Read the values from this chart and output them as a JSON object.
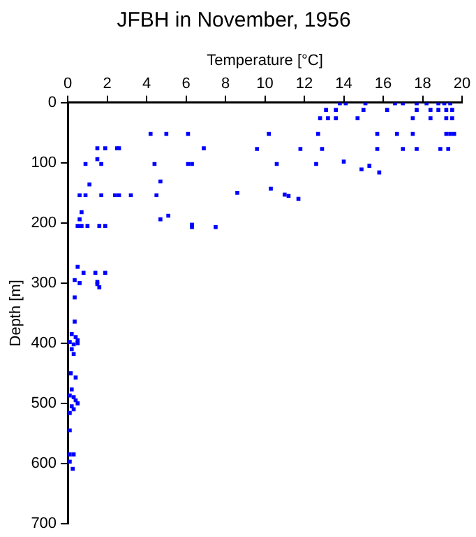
{
  "chart_data": {
    "type": "scatter",
    "title": "JFBH in November, 1956",
    "xlabel": "Temperature [°C]",
    "ylabel": "Depth [m]",
    "xlim": [
      0,
      20
    ],
    "xticks": [
      0,
      2,
      4,
      6,
      8,
      10,
      12,
      14,
      16,
      18,
      20
    ],
    "ylim": [
      700,
      0
    ],
    "yticks": [
      0,
      100,
      200,
      300,
      400,
      500,
      600,
      700
    ],
    "grid": false,
    "legend": false,
    "marker": "square",
    "series": [
      {
        "color": "#0000ff",
        "x": [
          13.8,
          14.1,
          15.1,
          16.6,
          17.0,
          17.7,
          18.2,
          18.8,
          19.1,
          19.4,
          13.1,
          13.6,
          15.0,
          16.2,
          17.7,
          18.4,
          18.8,
          19.2,
          19.5,
          12.8,
          13.2,
          13.6,
          14.7,
          17.5,
          18.4,
          19.2,
          19.5,
          4.2,
          5.0,
          6.1,
          10.2,
          12.7,
          15.7,
          16.7,
          17.5,
          19.2,
          19.4,
          19.6,
          1.5,
          1.9,
          2.5,
          2.6,
          6.9,
          9.6,
          11.8,
          12.9,
          15.7,
          17.0,
          17.7,
          18.9,
          19.3,
          1.5,
          0.9,
          1.7,
          4.4,
          6.1,
          6.3,
          10.6,
          12.6,
          14.0,
          15.3,
          14.9,
          15.8,
          4.7,
          1.1,
          10.3,
          11.0,
          11.2,
          11.7,
          8.6,
          0.6,
          0.9,
          1.7,
          2.4,
          2.6,
          3.2,
          4.5,
          0.7,
          0.6,
          4.7,
          5.1,
          0.5,
          0.7,
          1.0,
          1.6,
          1.9,
          6.3,
          6.3,
          7.5,
          0.5,
          0.8,
          1.4,
          1.9,
          0.35,
          0.6,
          1.5,
          1.6,
          1.5,
          0.35,
          0.35,
          0.2,
          0.4,
          0.5,
          0.1,
          0.3,
          0.2,
          0.3,
          0.5,
          0.15,
          0.4,
          0.2,
          0.1,
          0.3,
          0.4,
          0.5,
          0.2,
          0.3,
          0.1,
          0.1,
          0.1,
          0.3,
          0.1,
          0.25
        ],
        "values": [
          1,
          1,
          1,
          1,
          1,
          1,
          1,
          1,
          1,
          1,
          12,
          12,
          12,
          12,
          12,
          12,
          12,
          12,
          12,
          26,
          26,
          26,
          26,
          26,
          26,
          26,
          26,
          52,
          52,
          52,
          52,
          52,
          52,
          52,
          52,
          52,
          52,
          52,
          76,
          76,
          76,
          76,
          76,
          77,
          77,
          77,
          77,
          77,
          77,
          77,
          77,
          94,
          102,
          102,
          102,
          102,
          102,
          102,
          102,
          98,
          105,
          111,
          116,
          131,
          136,
          143,
          153,
          155,
          160,
          150,
          154,
          154,
          154,
          154,
          154,
          154,
          154,
          182,
          194,
          194,
          188,
          205,
          205,
          205,
          205,
          205,
          207,
          203,
          207,
          273,
          283,
          283,
          283,
          295,
          300,
          302,
          307,
          298,
          324,
          364,
          385,
          390,
          395,
          398,
          402,
          410,
          418,
          400,
          450,
          457,
          477,
          487,
          490,
          495,
          500,
          505,
          510,
          516,
          545,
          585,
          585,
          597,
          609
        ]
      }
    ]
  }
}
